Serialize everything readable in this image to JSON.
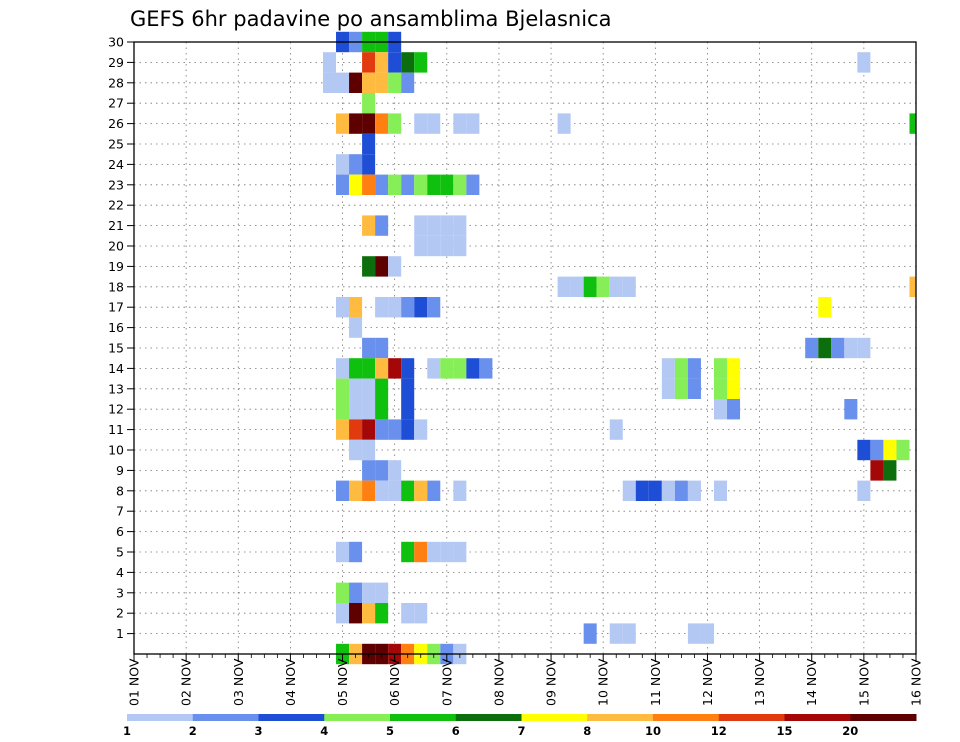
{
  "chart_data": {
    "type": "heatmap",
    "title": "GEFS 6hr padavine po ansamblima Bjelasnica",
    "x_ticks": [
      "01 NOV",
      "02 NOV",
      "03 NOV",
      "04 NOV",
      "05 NOV",
      "06 NOV",
      "07 NOV",
      "08 NOV",
      "09 NOV",
      "10 NOV",
      "11 NOV",
      "12 NOV",
      "13 NOV",
      "14 NOV",
      "15 NOV",
      "16 NOV"
    ],
    "y_ticks": [
      "1",
      "2",
      "3",
      "4",
      "5",
      "6",
      "7",
      "8",
      "9",
      "10",
      "11",
      "12",
      "13",
      "14",
      "15",
      "16",
      "17",
      "18",
      "19",
      "20",
      "21",
      "22",
      "23",
      "24",
      "25",
      "26",
      "27",
      "28",
      "29",
      "30"
    ],
    "xlim_days": [
      1,
      16
    ],
    "ylim": [
      0,
      30
    ],
    "grid": true,
    "colorbar": {
      "labels": [
        "1",
        "2",
        "3",
        "4",
        "5",
        "6",
        "7",
        "8",
        "10",
        "12",
        "15",
        "20"
      ],
      "colors": [
        "#b4c8f4",
        "#6990ec",
        "#1f4ed6",
        "#86ee56",
        "#0fc00f",
        "#0d6e0d",
        "#ffff00",
        "#ffbb40",
        "#ff7f10",
        "#e23a0f",
        "#a40707",
        "#5e0000"
      ]
    },
    "series": [
      {
        "member": 30,
        "cells": [
          [
            5.0,
            2
          ],
          [
            5.25,
            1
          ],
          [
            5.5,
            4
          ],
          [
            5.75,
            4
          ],
          [
            6.0,
            2
          ]
        ]
      },
      {
        "member": 29,
        "cells": [
          [
            4.75,
            0
          ],
          [
            5.5,
            9
          ],
          [
            5.75,
            7
          ],
          [
            6.0,
            2
          ],
          [
            6.25,
            5
          ],
          [
            6.5,
            4
          ],
          [
            15.0,
            0
          ]
        ]
      },
      {
        "member": 28,
        "cells": [
          [
            4.75,
            0
          ],
          [
            5.0,
            0
          ],
          [
            5.25,
            11
          ],
          [
            5.5,
            7
          ],
          [
            5.75,
            7
          ],
          [
            6.0,
            3
          ],
          [
            6.25,
            1
          ]
        ]
      },
      {
        "member": 27,
        "cells": [
          [
            5.5,
            3
          ]
        ]
      },
      {
        "member": 26,
        "cells": [
          [
            5.0,
            7
          ],
          [
            5.25,
            11
          ],
          [
            5.5,
            11
          ],
          [
            5.75,
            8
          ],
          [
            6.0,
            3
          ],
          [
            6.5,
            0
          ],
          [
            6.75,
            0
          ],
          [
            7.25,
            0
          ],
          [
            7.5,
            0
          ],
          [
            9.25,
            0
          ],
          [
            16.0,
            4
          ]
        ]
      },
      {
        "member": 25,
        "cells": [
          [
            5.5,
            2
          ]
        ]
      },
      {
        "member": 24,
        "cells": [
          [
            5.0,
            0
          ],
          [
            5.25,
            1
          ],
          [
            5.5,
            2
          ]
        ]
      },
      {
        "member": 23,
        "cells": [
          [
            5.0,
            1
          ],
          [
            5.25,
            6
          ],
          [
            5.5,
            8
          ],
          [
            5.75,
            1
          ],
          [
            6.0,
            3
          ],
          [
            6.25,
            1
          ],
          [
            6.5,
            3
          ],
          [
            6.75,
            4
          ],
          [
            7.0,
            4
          ],
          [
            7.25,
            3
          ],
          [
            7.5,
            1
          ]
        ]
      },
      {
        "member": 21,
        "cells": [
          [
            5.5,
            7
          ],
          [
            5.75,
            1
          ],
          [
            6.5,
            0
          ],
          [
            6.75,
            0
          ],
          [
            7.0,
            0
          ],
          [
            7.25,
            0
          ]
        ]
      },
      {
        "member": 20,
        "cells": [
          [
            6.5,
            0
          ],
          [
            6.75,
            0
          ],
          [
            7.0,
            0
          ],
          [
            7.25,
            0
          ]
        ]
      },
      {
        "member": 19,
        "cells": [
          [
            5.5,
            5
          ],
          [
            5.75,
            11
          ],
          [
            6.0,
            0
          ]
        ]
      },
      {
        "member": 18,
        "cells": [
          [
            9.25,
            0
          ],
          [
            9.5,
            0
          ],
          [
            9.75,
            4
          ],
          [
            10.0,
            3
          ],
          [
            10.25,
            0
          ],
          [
            10.5,
            0
          ],
          [
            16.0,
            7
          ]
        ]
      },
      {
        "member": 17,
        "cells": [
          [
            5.0,
            0
          ],
          [
            5.25,
            7
          ],
          [
            5.75,
            0
          ],
          [
            6.0,
            0
          ],
          [
            6.25,
            1
          ],
          [
            6.5,
            2
          ],
          [
            6.75,
            1
          ],
          [
            14.25,
            6
          ]
        ]
      },
      {
        "member": 16,
        "cells": [
          [
            5.25,
            0
          ]
        ]
      },
      {
        "member": 15,
        "cells": [
          [
            5.5,
            1
          ],
          [
            5.75,
            1
          ],
          [
            14.0,
            1
          ],
          [
            14.25,
            5
          ],
          [
            14.5,
            1
          ],
          [
            14.75,
            0
          ],
          [
            15.0,
            0
          ]
        ]
      },
      {
        "member": 14,
        "cells": [
          [
            5.0,
            0
          ],
          [
            5.25,
            4
          ],
          [
            5.5,
            4
          ],
          [
            5.75,
            7
          ],
          [
            6.0,
            10
          ],
          [
            6.25,
            2
          ],
          [
            6.75,
            0
          ],
          [
            7.0,
            3
          ],
          [
            7.25,
            3
          ],
          [
            7.5,
            2
          ],
          [
            7.75,
            1
          ],
          [
            11.25,
            0
          ],
          [
            11.5,
            3
          ],
          [
            11.75,
            1
          ],
          [
            12.25,
            3
          ],
          [
            12.5,
            6
          ]
        ]
      },
      {
        "member": 13,
        "cells": [
          [
            5.0,
            3
          ],
          [
            5.25,
            0
          ],
          [
            5.5,
            0
          ],
          [
            5.75,
            4
          ],
          [
            6.25,
            2
          ],
          [
            11.25,
            0
          ],
          [
            11.5,
            3
          ],
          [
            11.75,
            1
          ],
          [
            12.25,
            3
          ],
          [
            12.5,
            6
          ]
        ]
      },
      {
        "member": 12,
        "cells": [
          [
            5.0,
            3
          ],
          [
            5.25,
            0
          ],
          [
            5.5,
            0
          ],
          [
            5.75,
            4
          ],
          [
            6.25,
            2
          ],
          [
            12.25,
            0
          ],
          [
            12.5,
            1
          ],
          [
            14.75,
            1
          ]
        ]
      },
      {
        "member": 11,
        "cells": [
          [
            5.0,
            7
          ],
          [
            5.25,
            9
          ],
          [
            5.5,
            10
          ],
          [
            5.75,
            1
          ],
          [
            6.0,
            1
          ],
          [
            6.25,
            2
          ],
          [
            6.5,
            0
          ],
          [
            10.25,
            0
          ]
        ]
      },
      {
        "member": 10,
        "cells": [
          [
            5.25,
            0
          ],
          [
            5.5,
            0
          ],
          [
            15.0,
            2
          ],
          [
            15.25,
            1
          ],
          [
            15.5,
            6
          ],
          [
            15.75,
            3
          ]
        ]
      },
      {
        "member": 9,
        "cells": [
          [
            5.5,
            1
          ],
          [
            5.75,
            1
          ],
          [
            6.0,
            0
          ],
          [
            15.25,
            10
          ],
          [
            15.5,
            5
          ]
        ]
      },
      {
        "member": 8,
        "cells": [
          [
            5.0,
            1
          ],
          [
            5.25,
            7
          ],
          [
            5.5,
            8
          ],
          [
            5.75,
            0
          ],
          [
            6.0,
            0
          ],
          [
            6.25,
            4
          ],
          [
            6.5,
            7
          ],
          [
            6.75,
            1
          ],
          [
            7.25,
            0
          ],
          [
            10.5,
            0
          ],
          [
            10.75,
            2
          ],
          [
            11.0,
            2
          ],
          [
            11.25,
            0
          ],
          [
            11.5,
            1
          ],
          [
            11.75,
            0
          ],
          [
            12.25,
            0
          ],
          [
            15.0,
            0
          ]
        ]
      },
      {
        "member": 5,
        "cells": [
          [
            5.0,
            0
          ],
          [
            5.25,
            1
          ],
          [
            6.25,
            4
          ],
          [
            6.5,
            8
          ],
          [
            6.75,
            0
          ],
          [
            7.0,
            0
          ],
          [
            7.25,
            0
          ]
        ]
      },
      {
        "member": 3,
        "cells": [
          [
            5.0,
            3
          ],
          [
            5.25,
            1
          ],
          [
            5.5,
            0
          ],
          [
            5.75,
            0
          ]
        ]
      },
      {
        "member": 2,
        "cells": [
          [
            5.0,
            0
          ],
          [
            5.25,
            11
          ],
          [
            5.5,
            7
          ],
          [
            5.75,
            4
          ],
          [
            6.25,
            0
          ],
          [
            6.5,
            0
          ]
        ]
      },
      {
        "member": 1,
        "cells": [
          [
            9.75,
            1
          ],
          [
            10.25,
            0
          ],
          [
            10.5,
            0
          ],
          [
            11.75,
            0
          ],
          [
            12.0,
            0
          ]
        ]
      },
      {
        "member": 0,
        "cells": [
          [
            5.0,
            4
          ],
          [
            5.25,
            7
          ],
          [
            5.5,
            11
          ],
          [
            5.75,
            11
          ],
          [
            6.0,
            10
          ],
          [
            6.25,
            8
          ],
          [
            6.5,
            6
          ],
          [
            6.75,
            3
          ],
          [
            7.0,
            1
          ],
          [
            7.25,
            0
          ]
        ]
      }
    ]
  }
}
